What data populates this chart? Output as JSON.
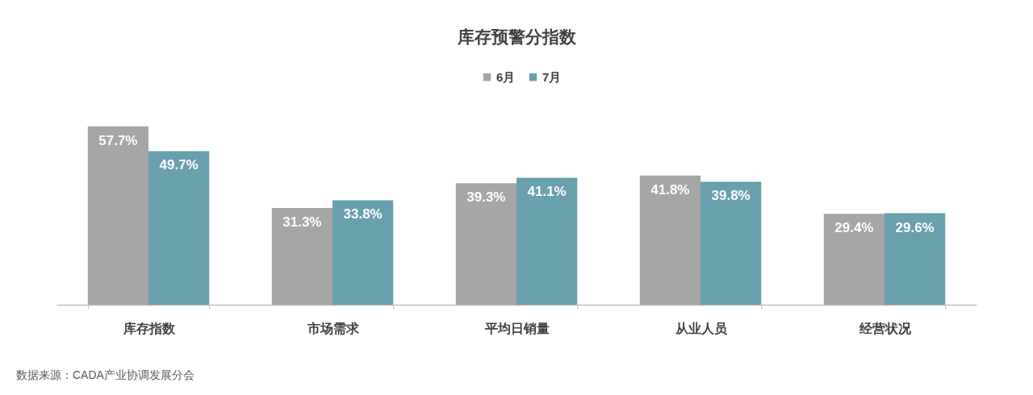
{
  "chart_data": {
    "type": "bar",
    "title": "库存预警分指数",
    "categories": [
      "库存指数",
      "市场需求",
      "平均日销量",
      "从业人员",
      "经营状况"
    ],
    "series": [
      {
        "name": "6月",
        "color": "#a6a6a6",
        "values": [
          57.7,
          31.3,
          39.3,
          41.8,
          29.4
        ],
        "value_labels": [
          "57.7%",
          "31.3%",
          "39.3%",
          "41.8%",
          "29.4%"
        ]
      },
      {
        "name": "7月",
        "color": "#68a0ad",
        "values": [
          49.7,
          33.8,
          41.1,
          39.8,
          29.6
        ],
        "value_labels": [
          "49.7%",
          "33.8%",
          "41.1%",
          "39.8%",
          "29.6%"
        ]
      }
    ],
    "legend": "top",
    "tick_labels": "x",
    "grid": false,
    "annotations": [
      "数据来源：CADA产业协调发展分会"
    ]
  }
}
